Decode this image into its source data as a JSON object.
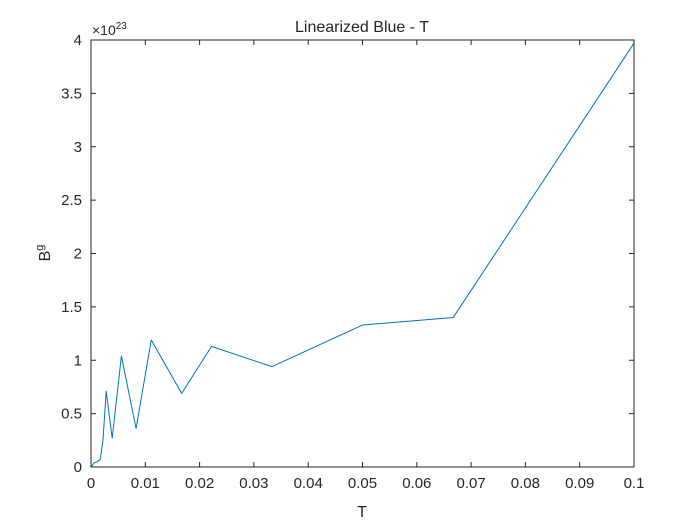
{
  "chart_data": {
    "type": "line",
    "title": "Linearized Blue - T",
    "xlabel": "T",
    "ylabel": "B",
    "ylabel_superscript": "g",
    "exponent_prefix": "×10",
    "exponent_power": "23",
    "xlim": [
      0,
      0.1
    ],
    "ylim": [
      0,
      4
    ],
    "xticks": [
      0,
      0.01,
      0.02,
      0.03,
      0.04,
      0.05,
      0.06,
      0.07,
      0.08,
      0.09,
      0.1
    ],
    "xtick_labels": [
      "0",
      "0.01",
      "0.02",
      "0.03",
      "0.04",
      "0.05",
      "0.06",
      "0.07",
      "0.08",
      "0.09",
      "0.1"
    ],
    "yticks": [
      0,
      0.5,
      1,
      1.5,
      2,
      2.5,
      3,
      3.5,
      4
    ],
    "ytick_labels": [
      "0",
      "0.5",
      "1",
      "1.5",
      "2",
      "2.5",
      "3",
      "3.5",
      "4"
    ],
    "grid": false,
    "series": [
      {
        "color": "#0072BD",
        "x": [
          0,
          0.0006,
          0.0011,
          0.0017,
          0.0022,
          0.0028,
          0.0039,
          0.0056,
          0.0083,
          0.0111,
          0.0167,
          0.0222,
          0.0333,
          0.05,
          0.0667,
          0.1
        ],
        "y": [
          0,
          0.04,
          0.05,
          0.07,
          0.25,
          0.71,
          0.27,
          1.04,
          0.36,
          1.19,
          0.69,
          1.13,
          0.94,
          1.33,
          1.4,
          3.97
        ]
      }
    ]
  }
}
